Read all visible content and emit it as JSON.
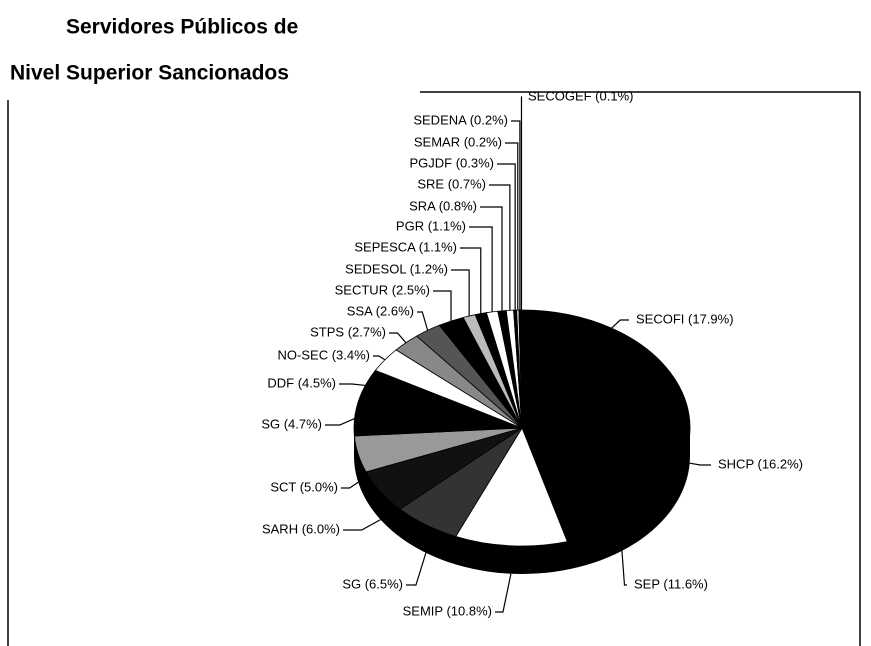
{
  "chart_data": {
    "type": "pie",
    "title": [
      "Servidores Públicos de",
      "Nivel Superior Sancionados"
    ],
    "categories": [
      "SECOFI (17.9%)",
      "SHCP (16.2%)",
      "SEP (11.6%)",
      "SEMIP (10.8%)",
      "SG (6.5%)",
      "SARH (6.0%)",
      "SCT (5.0%)",
      "SG (4.7%)",
      "DDF (4.5%)",
      "NO-SEC (3.4%)",
      "STPS (2.7%)",
      "SSA (2.6%)",
      "SECTUR (2.5%)",
      "SEDESOL (1.2%)",
      "SEPESCA (1.1%)",
      "PGR (1.1%)",
      "SRA (0.8%)",
      "SRE (0.7%)",
      "PGJDF (0.3%)",
      "SEMAR (0.2%)",
      "SEDENA (0.2%)",
      "SECOGEF (0.1%)"
    ],
    "values": [
      17.9,
      16.2,
      11.6,
      10.8,
      6.5,
      6.0,
      5.0,
      4.7,
      4.5,
      3.4,
      2.7,
      2.6,
      2.5,
      1.2,
      1.1,
      1.1,
      0.8,
      0.7,
      0.3,
      0.2,
      0.2,
      0.1
    ],
    "colors": [
      "#000000",
      "#000000",
      "#000000",
      "#ffffff",
      "#333333",
      "#111111",
      "#999999",
      "#000000",
      "#000000",
      "#ffffff",
      "#888888",
      "#555555",
      "#000000",
      "#bbbbbb",
      "#000000",
      "#ffffff",
      "#000000",
      "#ffffff",
      "#000000",
      "#ffffff",
      "#000000",
      "#000000"
    ]
  }
}
